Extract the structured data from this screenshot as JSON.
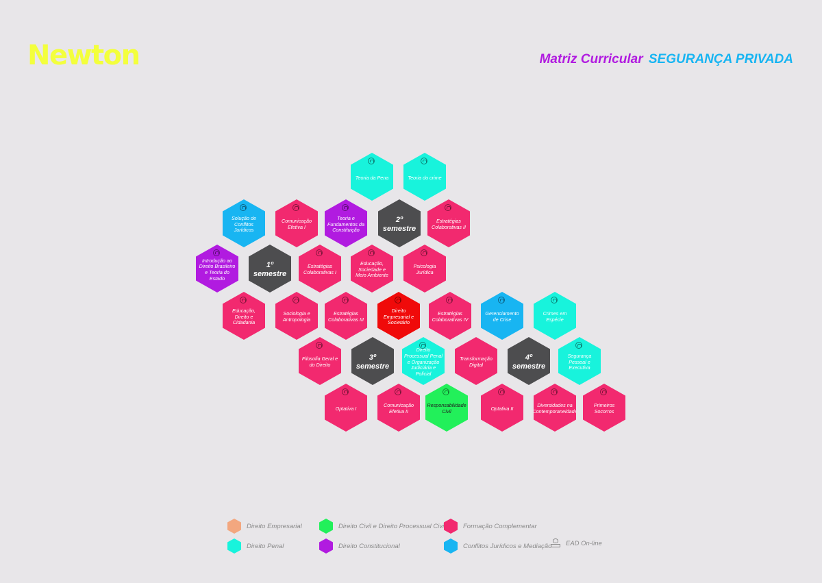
{
  "header": {
    "logo": "Newton",
    "title_part1": "Matriz Curricular",
    "title_part2": "SEGURANÇA PRIVADA"
  },
  "colors": {
    "direito_empresarial": "#f3a77f",
    "direito_penal": "#18f3dc",
    "direito_civil": "#22f05a",
    "direito_constitucional": "#b11be0",
    "formacao_complementar": "#f2296f",
    "conflitos": "#18b5f2",
    "semestre": "#4d4d4f",
    "highlight_red": "#f00a0a",
    "brand_yellow": "#f3ff3c"
  },
  "hexes": [
    {
      "label": "Teoria da Pena",
      "category": "direito_penal",
      "icon": "ead-icon"
    },
    {
      "label": "Teoria do crime",
      "category": "direito_penal",
      "icon": "ead-icon"
    },
    {
      "label": "Solução de Conflitos Jurídicos",
      "category": "conflitos",
      "icon": "ead-icon"
    },
    {
      "label": "Comunicação Efetiva I",
      "category": "formacao_complementar",
      "icon": "ead-icon"
    },
    {
      "label": "Teoria e Fundamentos da Constituição",
      "category": "direito_constitucional",
      "icon": "ead-icon"
    },
    {
      "label": "2º semestre",
      "category": "semestre"
    },
    {
      "label": "Estratégias Colaborativas II",
      "category": "formacao_complementar",
      "icon": "ead-icon"
    },
    {
      "label": "Introdução ao Direito Brasileiro e Teoria do Estado",
      "category": "direito_constitucional",
      "icon": "ead-icon"
    },
    {
      "label": "1º semestre",
      "category": "semestre"
    },
    {
      "label": "Estratégias Colaborativas I",
      "category": "formacao_complementar",
      "icon": "ead-icon"
    },
    {
      "label": "Educação, Sociedade e Meio Ambiente",
      "category": "formacao_complementar",
      "icon": "ead-icon"
    },
    {
      "label": "Psicologia Jurídica",
      "category": "formacao_complementar",
      "icon": "ead-icon"
    },
    {
      "label": "Educação, Direito e Cidadania",
      "category": "formacao_complementar",
      "icon": "ead-icon"
    },
    {
      "label": "Sociologia e Antropologia",
      "category": "formacao_complementar",
      "icon": "ead-icon"
    },
    {
      "label": "Estratégias Colaborativas III",
      "category": "formacao_complementar",
      "icon": "ead-icon"
    },
    {
      "label": "Direito Empresarial e Societário",
      "category": "highlight_red",
      "icon": "ead-icon"
    },
    {
      "label": "Estratégias Colaborativas IV",
      "category": "formacao_complementar",
      "icon": "ead-icon"
    },
    {
      "label": "Gerenciamento de Crise",
      "category": "conflitos",
      "icon": "ead-icon"
    },
    {
      "label": "Crimes em Espécie",
      "category": "direito_penal",
      "icon": "ead-icon"
    },
    {
      "label": "Filosofia Geral e do Direito",
      "category": "formacao_complementar",
      "icon": "ead-icon"
    },
    {
      "label": "3º semestre",
      "category": "semestre"
    },
    {
      "label": "Direito Processual Penal e Organização Judiciária e Policial",
      "category": "direito_penal",
      "icon": "ead-icon"
    },
    {
      "label": "Transformação Digital",
      "category": "formacao_complementar"
    },
    {
      "label": "4º semestre",
      "category": "semestre"
    },
    {
      "label": "Segurança Pessoal e Executiva",
      "category": "direito_penal",
      "icon": "ead-icon"
    },
    {
      "label": "Optativa I",
      "category": "formacao_complementar",
      "icon": "ead-icon"
    },
    {
      "label": "Comunicação Efetiva II",
      "category": "formacao_complementar",
      "icon": "ead-icon"
    },
    {
      "label": "Responsabilidade Civil",
      "category": "direito_civil",
      "icon": "ead-icon"
    },
    {
      "label": "Optativa II",
      "category": "formacao_complementar",
      "icon": "ead-icon"
    },
    {
      "label": "Diversidades na Contemporaneidade",
      "category": "formacao_complementar",
      "icon": "ead-icon"
    },
    {
      "label": "Primeiros Socorros",
      "category": "formacao_complementar",
      "icon": "ead-icon"
    }
  ],
  "legend": [
    {
      "label": "Direito Empresarial",
      "category": "direito_empresarial"
    },
    {
      "label": "Direito Penal",
      "category": "direito_penal"
    },
    {
      "label": "Direito Civil e Direito Processual Civil",
      "category": "direito_civil"
    },
    {
      "label": "Direito Constitucional",
      "category": "direito_constitucional"
    },
    {
      "label": "Formação Complementar",
      "category": "formacao_complementar"
    },
    {
      "label": "Conflitos Jurídicos e Mediação",
      "category": "conflitos"
    },
    {
      "label": "EAD On-line",
      "category": "ead",
      "icon": "ead-icon"
    }
  ]
}
